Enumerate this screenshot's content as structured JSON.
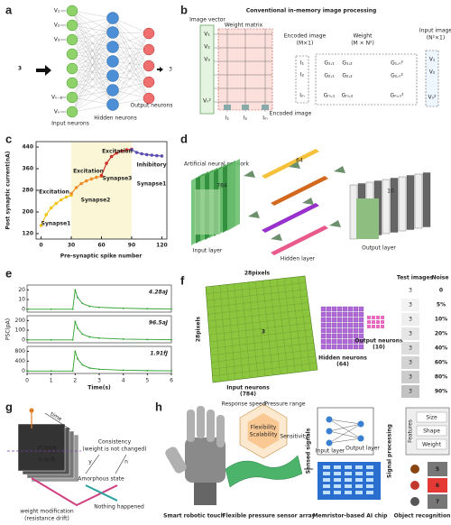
{
  "panels": {
    "a": {
      "label": "a",
      "digit": "3",
      "inputs": [
        "V₁",
        "V₂",
        "V₃",
        "Vₙ₋₁",
        "Vₙ"
      ],
      "input_neurons": "Input neurons",
      "hidden_neurons": "Hidden neurons",
      "output_neurons": "Output neurons"
    },
    "b": {
      "label": "b",
      "title": "Conventional in-memory image processing",
      "image_vector": "Image vector",
      "vector": [
        "V₁",
        "V₂",
        "V₃",
        "Vₙ²"
      ],
      "weight_matrix": "Weight matrix",
      "currents": [
        "I₁",
        "I₂",
        "Iₘ"
      ],
      "encoded_image": "Encoded image",
      "encoded_vector": "Encoded image",
      "encoded_size": "(M×1)",
      "weight": "Weight",
      "weight_size": "(M × N²)",
      "input_image": "Input image",
      "input_size": "(N²×1)",
      "outputs": [
        "I₁",
        "I₂",
        "Iₘ"
      ],
      "matrix": [
        [
          "G₁,₁",
          "G₁,₂",
          "G₁,ₙ²"
        ],
        [
          "G₂,₁",
          "G₂,₂",
          "G₂,ₙ²"
        ],
        [
          "Gₘ,₁",
          "Gₘ,₂",
          "Gₘ,ₙ²"
        ]
      ],
      "inputs": [
        "V₁",
        "V₂",
        "Vₙ²"
      ]
    },
    "c": {
      "label": "c",
      "annotations": [
        "Synapse1",
        "Excitation",
        "Synapse2",
        "Excitation",
        "Synapse3",
        "Excitation",
        "Inhibitory",
        "Synapse1"
      ],
      "chart": {
        "type": "line",
        "xlabel": "Pre-synaptic spike number",
        "ylabel": "Post synaptic current(nA)",
        "xlim": [
          -5,
          125
        ],
        "ylim": [
          100,
          460
        ],
        "xticks": [
          0,
          30,
          60,
          90,
          120
        ],
        "yticks": [
          120,
          200,
          280,
          360,
          440
        ],
        "series": [
          {
            "color": "#f0c419",
            "x": [
              0,
              5,
              10,
              15,
              20,
              25,
              30
            ],
            "values": [
              150,
              190,
              215,
              232,
              245,
              255,
              262
            ]
          },
          {
            "color": "#f08c2a",
            "x": [
              30,
              35,
              40,
              45,
              50,
              55,
              60
            ],
            "values": [
              268,
              290,
              305,
              315,
              322,
              328,
              332
            ]
          },
          {
            "color": "#d0322a",
            "x": [
              60,
              65,
              70,
              75,
              80,
              85,
              90
            ],
            "values": [
              335,
              380,
              405,
              418,
              425,
              430,
              432
            ]
          },
          {
            "color": "#5b4fb0",
            "x": [
              90,
              95,
              100,
              105,
              110,
              115,
              120
            ],
            "values": [
              430,
              420,
              415,
              412,
              410,
              408,
              407
            ]
          }
        ]
      }
    },
    "d": {
      "label": "d",
      "network": "Artificial neural network",
      "input_count": "784",
      "hidden_count": "64",
      "output_count": "10",
      "input_layer": "Input layer",
      "hidden_layer": "Hidden layer",
      "output_layer": "Output layer"
    },
    "e": {
      "label": "e",
      "chart": {
        "type": "line",
        "xlabel": "Time(s)",
        "ylabel": "PSC(pA)",
        "xlim": [
          0,
          6
        ],
        "xticks": [
          0,
          1,
          2,
          3,
          4,
          5,
          6
        ],
        "x": [
          0,
          1,
          1.9,
          2,
          2.1,
          2.3,
          2.6,
          3,
          4,
          5,
          6
        ],
        "plots": [
          {
            "annotation": "4.28aJ",
            "color": "#2ca02c",
            "ylim": [
              -3,
              25
            ],
            "yticks": [
              0,
              10,
              20
            ],
            "values": [
              0,
              0,
              0,
              20,
              12,
              6,
              3,
              2,
              1,
              0.5,
              0.3
            ]
          },
          {
            "annotation": "96.5aJ",
            "color": "#2ca02c",
            "ylim": [
              -30,
              250
            ],
            "yticks": [
              0,
              100,
              200
            ],
            "values": [
              0,
              0,
              0,
              190,
              120,
              60,
              30,
              18,
              8,
              4,
              2
            ]
          },
          {
            "annotation": "1.91fJ",
            "color": "#2ca02c",
            "ylim": [
              -100,
              1000
            ],
            "yticks": [
              0,
              400,
              800
            ],
            "values": [
              0,
              0,
              0,
              800,
              500,
              250,
              120,
              70,
              30,
              15,
              8
            ]
          }
        ]
      }
    },
    "f": {
      "label": "f",
      "pixels_top": "28pixels",
      "pixels_side": "28pixels",
      "input_neurons": "Input neurons",
      "input_count": "(784)",
      "hidden_neurons": "Hidden neurons",
      "hidden_count": "(64)",
      "output_neurons": "Output neurons",
      "output_count": "(10)",
      "test_images": "Test images",
      "noise": "Noise",
      "noise_levels": [
        "0",
        "5%",
        "10%",
        "20%",
        "40%",
        "60%",
        "80%",
        "90%"
      ]
    },
    "g": {
      "label": "g",
      "time": "time",
      "pcram": "PCRAM",
      "rdrift": "R-drift",
      "consistency": "Consistency",
      "consistency_note": "(weight is not changed)",
      "yes": "y",
      "no": "n",
      "amorphous": "Amorphous state",
      "modification": "weight modification",
      "modification_note": "(resistance drift)",
      "nothing": "Nothing happened"
    },
    "h": {
      "label": "h",
      "robot": "Smart robotic touch",
      "sensor": "Flexible pressure sensor array",
      "chip": "Memristor-based AI chip",
      "recognition": "Object recognition",
      "sensed": "Sensed signals",
      "processing": "Signal processing",
      "input_layer": "Input layer",
      "output_layer": "Output layer",
      "features": "Features",
      "feature_list": [
        "Size",
        "Shape",
        "Weight"
      ],
      "center": [
        "Flexibility",
        "Scalability"
      ],
      "properties": [
        "Response speed",
        "Pressure range",
        "Sensitivity"
      ],
      "digits": [
        "5",
        "6",
        "7"
      ]
    }
  }
}
